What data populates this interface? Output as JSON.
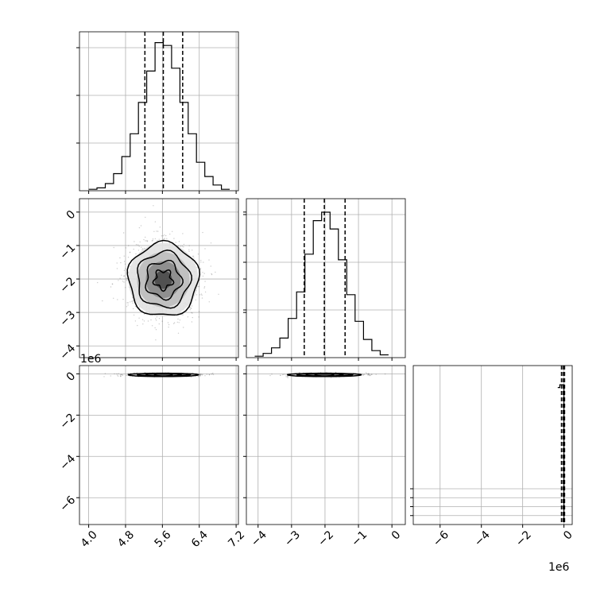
{
  "chart_data": {
    "type": "corner",
    "axis_offset_label": "1e6",
    "grid": true,
    "parameters": [
      {
        "range": [
          3.8,
          7.25
        ],
        "ticks": [
          4.0,
          4.8,
          5.6,
          6.4,
          7.2
        ],
        "tick_labels": [
          "4.0",
          "4.8",
          "5.6",
          "6.4",
          "7.2"
        ],
        "quantiles": [
          5.22,
          5.62,
          6.04
        ],
        "hist_ticks": [
          1,
          2,
          3
        ]
      },
      {
        "range": [
          -4.35,
          0.4
        ],
        "ticks": [
          -4,
          -3,
          -2,
          -1,
          0
        ],
        "tick_labels": [
          "−4",
          "−3",
          "−2",
          "−1",
          "0"
        ],
        "quantiles": [
          -2.62,
          -2.02,
          -1.4
        ],
        "hist_ticks": [
          1,
          2,
          3
        ]
      },
      {
        "range": [
          -7.3,
          0.4
        ],
        "ticks": [
          -6,
          -4,
          -2,
          0
        ],
        "tick_labels": [
          "−6",
          "−4",
          "−2",
          "0"
        ],
        "quantiles": [
          -0.12,
          -0.04,
          0.03
        ],
        "hist_ticks": [
          0.25,
          0.5,
          0.75,
          1.0
        ]
      }
    ],
    "histograms": [
      {
        "param": 0,
        "bin_edges": [
          4.0,
          4.18,
          4.36,
          4.54,
          4.72,
          4.9,
          5.08,
          5.26,
          5.44,
          5.62,
          5.8,
          5.98,
          6.16,
          6.34,
          6.52,
          6.7,
          6.88,
          7.06
        ],
        "counts": [
          0.01,
          0.02,
          0.05,
          0.12,
          0.24,
          0.4,
          0.62,
          0.84,
          1.04,
          1.02,
          0.86,
          0.62,
          0.4,
          0.2,
          0.1,
          0.04,
          0.01
        ],
        "ymax": 1.06
      },
      {
        "param": 1,
        "bin_edges": [
          -4.1,
          -3.85,
          -3.6,
          -3.35,
          -3.1,
          -2.85,
          -2.6,
          -2.35,
          -2.1,
          -1.85,
          -1.6,
          -1.35,
          -1.1,
          -0.85,
          -0.6,
          -0.35,
          -0.1
        ],
        "counts": [
          0.01,
          0.03,
          0.07,
          0.14,
          0.28,
          0.47,
          0.74,
          0.98,
          1.04,
          0.92,
          0.7,
          0.45,
          0.26,
          0.13,
          0.05,
          0.02
        ],
        "ymax": 1.08
      },
      {
        "param": 2,
        "bin_edges": [
          -0.3,
          -0.2,
          -0.1,
          0.0,
          0.05
        ],
        "counts": [
          0.98,
          1.0,
          1.0,
          0.02
        ],
        "ymax": 1.08
      }
    ],
    "scatter_2d": [
      {
        "x_param": 0,
        "y_param": 1,
        "center": [
          5.62,
          -2.02
        ],
        "spread": [
          0.38,
          0.55
        ],
        "contour_levels_sigma": [
          0.5,
          1.0,
          1.5,
          2.0
        ]
      },
      {
        "x_param": 0,
        "y_param": 2,
        "center": [
          5.62,
          -0.05
        ],
        "spread": [
          0.38,
          0.04
        ],
        "contour_levels_sigma": [
          0.5,
          1.0,
          1.5,
          2.0
        ]
      },
      {
        "x_param": 1,
        "y_param": 2,
        "center": [
          -2.02,
          -0.05
        ],
        "spread": [
          0.55,
          0.04
        ],
        "contour_levels_sigma": [
          0.5,
          1.0,
          1.5,
          2.0
        ]
      }
    ]
  }
}
